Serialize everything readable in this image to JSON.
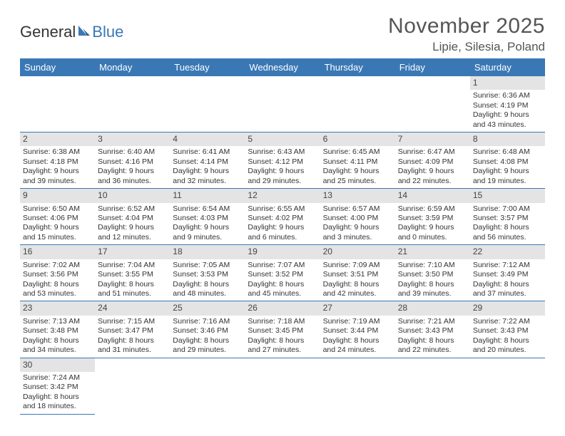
{
  "logo": {
    "part1": "General",
    "part2": "Blue"
  },
  "title": "November 2025",
  "location": "Lipie, Silesia, Poland",
  "colors": {
    "header_bg": "#3a78b5",
    "header_text": "#ffffff",
    "daynum_bg": "#e4e4e4",
    "body_text": "#333333",
    "rule": "#3a78b5"
  },
  "weekdays": [
    "Sunday",
    "Monday",
    "Tuesday",
    "Wednesday",
    "Thursday",
    "Friday",
    "Saturday"
  ],
  "weeks": [
    [
      null,
      null,
      null,
      null,
      null,
      null,
      {
        "n": "1",
        "sr": "Sunrise: 6:36 AM",
        "ss": "Sunset: 4:19 PM",
        "d1": "Daylight: 9 hours",
        "d2": "and 43 minutes."
      }
    ],
    [
      {
        "n": "2",
        "sr": "Sunrise: 6:38 AM",
        "ss": "Sunset: 4:18 PM",
        "d1": "Daylight: 9 hours",
        "d2": "and 39 minutes."
      },
      {
        "n": "3",
        "sr": "Sunrise: 6:40 AM",
        "ss": "Sunset: 4:16 PM",
        "d1": "Daylight: 9 hours",
        "d2": "and 36 minutes."
      },
      {
        "n": "4",
        "sr": "Sunrise: 6:41 AM",
        "ss": "Sunset: 4:14 PM",
        "d1": "Daylight: 9 hours",
        "d2": "and 32 minutes."
      },
      {
        "n": "5",
        "sr": "Sunrise: 6:43 AM",
        "ss": "Sunset: 4:12 PM",
        "d1": "Daylight: 9 hours",
        "d2": "and 29 minutes."
      },
      {
        "n": "6",
        "sr": "Sunrise: 6:45 AM",
        "ss": "Sunset: 4:11 PM",
        "d1": "Daylight: 9 hours",
        "d2": "and 25 minutes."
      },
      {
        "n": "7",
        "sr": "Sunrise: 6:47 AM",
        "ss": "Sunset: 4:09 PM",
        "d1": "Daylight: 9 hours",
        "d2": "and 22 minutes."
      },
      {
        "n": "8",
        "sr": "Sunrise: 6:48 AM",
        "ss": "Sunset: 4:08 PM",
        "d1": "Daylight: 9 hours",
        "d2": "and 19 minutes."
      }
    ],
    [
      {
        "n": "9",
        "sr": "Sunrise: 6:50 AM",
        "ss": "Sunset: 4:06 PM",
        "d1": "Daylight: 9 hours",
        "d2": "and 15 minutes."
      },
      {
        "n": "10",
        "sr": "Sunrise: 6:52 AM",
        "ss": "Sunset: 4:04 PM",
        "d1": "Daylight: 9 hours",
        "d2": "and 12 minutes."
      },
      {
        "n": "11",
        "sr": "Sunrise: 6:54 AM",
        "ss": "Sunset: 4:03 PM",
        "d1": "Daylight: 9 hours",
        "d2": "and 9 minutes."
      },
      {
        "n": "12",
        "sr": "Sunrise: 6:55 AM",
        "ss": "Sunset: 4:02 PM",
        "d1": "Daylight: 9 hours",
        "d2": "and 6 minutes."
      },
      {
        "n": "13",
        "sr": "Sunrise: 6:57 AM",
        "ss": "Sunset: 4:00 PM",
        "d1": "Daylight: 9 hours",
        "d2": "and 3 minutes."
      },
      {
        "n": "14",
        "sr": "Sunrise: 6:59 AM",
        "ss": "Sunset: 3:59 PM",
        "d1": "Daylight: 9 hours",
        "d2": "and 0 minutes."
      },
      {
        "n": "15",
        "sr": "Sunrise: 7:00 AM",
        "ss": "Sunset: 3:57 PM",
        "d1": "Daylight: 8 hours",
        "d2": "and 56 minutes."
      }
    ],
    [
      {
        "n": "16",
        "sr": "Sunrise: 7:02 AM",
        "ss": "Sunset: 3:56 PM",
        "d1": "Daylight: 8 hours",
        "d2": "and 53 minutes."
      },
      {
        "n": "17",
        "sr": "Sunrise: 7:04 AM",
        "ss": "Sunset: 3:55 PM",
        "d1": "Daylight: 8 hours",
        "d2": "and 51 minutes."
      },
      {
        "n": "18",
        "sr": "Sunrise: 7:05 AM",
        "ss": "Sunset: 3:53 PM",
        "d1": "Daylight: 8 hours",
        "d2": "and 48 minutes."
      },
      {
        "n": "19",
        "sr": "Sunrise: 7:07 AM",
        "ss": "Sunset: 3:52 PM",
        "d1": "Daylight: 8 hours",
        "d2": "and 45 minutes."
      },
      {
        "n": "20",
        "sr": "Sunrise: 7:09 AM",
        "ss": "Sunset: 3:51 PM",
        "d1": "Daylight: 8 hours",
        "d2": "and 42 minutes."
      },
      {
        "n": "21",
        "sr": "Sunrise: 7:10 AM",
        "ss": "Sunset: 3:50 PM",
        "d1": "Daylight: 8 hours",
        "d2": "and 39 minutes."
      },
      {
        "n": "22",
        "sr": "Sunrise: 7:12 AM",
        "ss": "Sunset: 3:49 PM",
        "d1": "Daylight: 8 hours",
        "d2": "and 37 minutes."
      }
    ],
    [
      {
        "n": "23",
        "sr": "Sunrise: 7:13 AM",
        "ss": "Sunset: 3:48 PM",
        "d1": "Daylight: 8 hours",
        "d2": "and 34 minutes."
      },
      {
        "n": "24",
        "sr": "Sunrise: 7:15 AM",
        "ss": "Sunset: 3:47 PM",
        "d1": "Daylight: 8 hours",
        "d2": "and 31 minutes."
      },
      {
        "n": "25",
        "sr": "Sunrise: 7:16 AM",
        "ss": "Sunset: 3:46 PM",
        "d1": "Daylight: 8 hours",
        "d2": "and 29 minutes."
      },
      {
        "n": "26",
        "sr": "Sunrise: 7:18 AM",
        "ss": "Sunset: 3:45 PM",
        "d1": "Daylight: 8 hours",
        "d2": "and 27 minutes."
      },
      {
        "n": "27",
        "sr": "Sunrise: 7:19 AM",
        "ss": "Sunset: 3:44 PM",
        "d1": "Daylight: 8 hours",
        "d2": "and 24 minutes."
      },
      {
        "n": "28",
        "sr": "Sunrise: 7:21 AM",
        "ss": "Sunset: 3:43 PM",
        "d1": "Daylight: 8 hours",
        "d2": "and 22 minutes."
      },
      {
        "n": "29",
        "sr": "Sunrise: 7:22 AM",
        "ss": "Sunset: 3:43 PM",
        "d1": "Daylight: 8 hours",
        "d2": "and 20 minutes."
      }
    ],
    [
      {
        "n": "30",
        "sr": "Sunrise: 7:24 AM",
        "ss": "Sunset: 3:42 PM",
        "d1": "Daylight: 8 hours",
        "d2": "and 18 minutes."
      },
      null,
      null,
      null,
      null,
      null,
      null
    ]
  ]
}
